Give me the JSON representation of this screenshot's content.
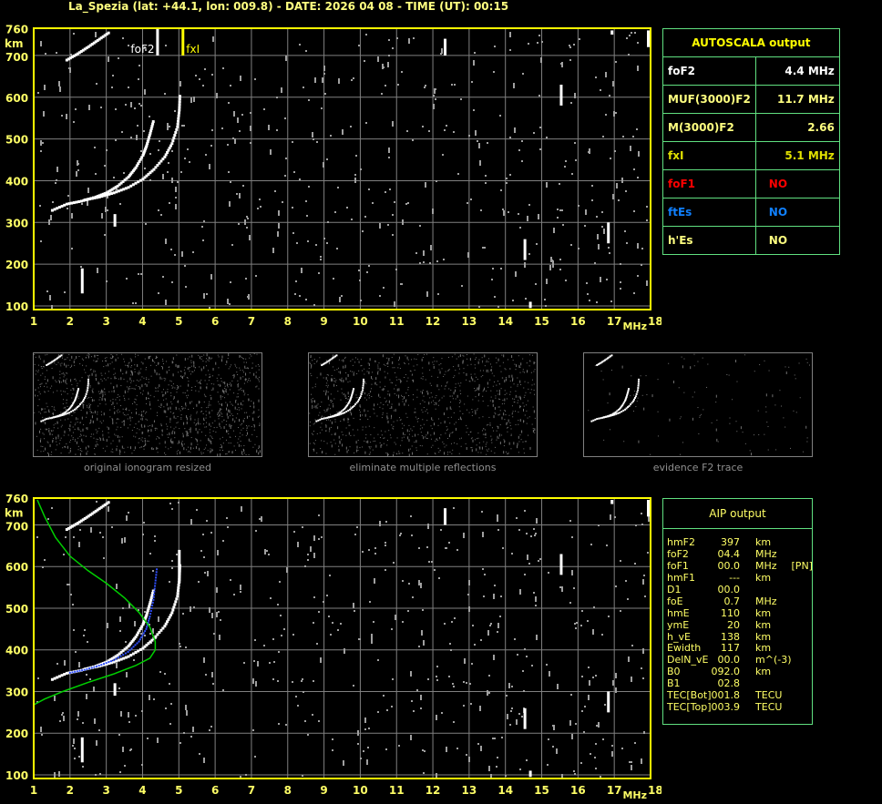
{
  "header": {
    "title": "La_Spezia (lat: +44.1, lon: 009.8) - DATE: 2026 04 08 - TIME (UT): 00:15"
  },
  "colors": {
    "axis": "#ffff00",
    "grid": "#808080",
    "trace": "#ffffff",
    "noise": "#a0a0a0",
    "profile": "#00d000",
    "aip_trace": "#3050ff",
    "panel_border": "#60e080"
  },
  "chart_data": [
    {
      "type": "scatter",
      "name": "ionogram-autoscala",
      "xlabel": "MHz",
      "ylabel": "km",
      "xlim": [
        1,
        18
      ],
      "ylim": [
        100,
        760
      ],
      "xticks": [
        "1",
        "2",
        "3",
        "4",
        "5",
        "6",
        "7",
        "8",
        "9",
        "10",
        "11",
        "12",
        "13",
        "14",
        "15",
        "16",
        "17",
        "18"
      ],
      "yticks": [
        "100",
        "200",
        "300",
        "400",
        "500",
        "600",
        "700",
        "760"
      ],
      "grid": true,
      "markers": [
        {
          "label": "foF2",
          "freq": 4.4,
          "color": "#ffffff"
        },
        {
          "label": "fxI",
          "freq": 5.1,
          "color": "#ffff00"
        }
      ],
      "traces": {
        "o_trace": [
          [
            1.5,
            330
          ],
          [
            1.9,
            345
          ],
          [
            2.3,
            352
          ],
          [
            2.7,
            362
          ],
          [
            3.0,
            372
          ],
          [
            3.3,
            388
          ],
          [
            3.6,
            410
          ],
          [
            3.8,
            432
          ],
          [
            4.0,
            462
          ],
          [
            4.1,
            485
          ],
          [
            4.2,
            515
          ],
          [
            4.3,
            548
          ]
        ],
        "x_trace": [
          [
            2.4,
            355
          ],
          [
            2.8,
            362
          ],
          [
            3.2,
            372
          ],
          [
            3.6,
            385
          ],
          [
            4.0,
            405
          ],
          [
            4.3,
            428
          ],
          [
            4.6,
            458
          ],
          [
            4.8,
            490
          ],
          [
            4.95,
            530
          ],
          [
            5.0,
            570
          ],
          [
            5.02,
            610
          ]
        ],
        "second_hop": [
          [
            1.9,
            690
          ],
          [
            2.2,
            705
          ],
          [
            2.5,
            722
          ],
          [
            2.8,
            740
          ],
          [
            3.1,
            758
          ]
        ]
      }
    },
    {
      "type": "scatter",
      "name": "ionogram-aip",
      "xlabel": "MHz",
      "ylabel": "km",
      "xlim": [
        1,
        18
      ],
      "ylim": [
        100,
        760
      ],
      "xticks": [
        "1",
        "2",
        "3",
        "4",
        "5",
        "6",
        "7",
        "8",
        "9",
        "10",
        "11",
        "12",
        "13",
        "14",
        "15",
        "16",
        "17",
        "18"
      ],
      "yticks": [
        "100",
        "200",
        "300",
        "400",
        "500",
        "600",
        "700",
        "760"
      ],
      "grid": true,
      "profile": [
        [
          1.1,
          760
        ],
        [
          1.3,
          720
        ],
        [
          1.6,
          670
        ],
        [
          2.0,
          625
        ],
        [
          2.5,
          590
        ],
        [
          3.0,
          560
        ],
        [
          3.5,
          525
        ],
        [
          3.9,
          490
        ],
        [
          4.2,
          455
        ],
        [
          4.35,
          420
        ],
        [
          4.35,
          400
        ],
        [
          4.2,
          380
        ],
        [
          3.8,
          362
        ],
        [
          3.2,
          342
        ],
        [
          2.5,
          322
        ],
        [
          1.8,
          300
        ],
        [
          1.3,
          282
        ],
        [
          1.0,
          268
        ]
      ],
      "aip_trace": [
        [
          2.0,
          345
        ],
        [
          2.4,
          352
        ],
        [
          2.8,
          362
        ],
        [
          3.2,
          375
        ],
        [
          3.6,
          395
        ],
        [
          3.9,
          420
        ],
        [
          4.1,
          450
        ],
        [
          4.2,
          480
        ],
        [
          4.3,
          520
        ],
        [
          4.35,
          560
        ],
        [
          4.4,
          600
        ]
      ]
    }
  ],
  "autoscala": {
    "title": "AUTOSCALA output",
    "rows": [
      {
        "name": "foF2",
        "value": "4.4 MHz",
        "color": "#ffffff"
      },
      {
        "name": "MUF(3000)F2",
        "value": "11.7 MHz",
        "color": "#ffff80"
      },
      {
        "name": "M(3000)F2",
        "value": "2.66",
        "color": "#ffff80"
      },
      {
        "name": "fxI",
        "value": "5.1 MHz",
        "color": "#e0e000"
      },
      {
        "name": "foF1",
        "value": "NO",
        "color": "#ff0000"
      },
      {
        "name": "ftEs",
        "value": "NO",
        "color": "#1080ff"
      },
      {
        "name": "h'Es",
        "value": "NO",
        "color": "#ffff80"
      }
    ]
  },
  "thumbnails": [
    {
      "caption": "original ionogram resized"
    },
    {
      "caption": "eliminate multiple reflections"
    },
    {
      "caption": "evidence F2 trace"
    }
  ],
  "aip": {
    "title": "AIP output",
    "rows": [
      {
        "name": "hmF2",
        "value": "397",
        "unit": "km",
        "extra": ""
      },
      {
        "name": "foF2",
        "value": "04.4",
        "unit": "MHz",
        "extra": ""
      },
      {
        "name": "foF1",
        "value": "00.0",
        "unit": "MHz",
        "extra": "[PN]"
      },
      {
        "name": "hmF1",
        "value": "---",
        "unit": "km",
        "extra": ""
      },
      {
        "name": "D1",
        "value": "00.0",
        "unit": "",
        "extra": ""
      },
      {
        "name": "foE",
        "value": "0.7",
        "unit": "MHz",
        "extra": ""
      },
      {
        "name": "hmE",
        "value": "110",
        "unit": "km",
        "extra": ""
      },
      {
        "name": "ymE",
        "value": "20",
        "unit": "km",
        "extra": ""
      },
      {
        "name": "h_vE",
        "value": "138",
        "unit": "km",
        "extra": ""
      },
      {
        "name": "Ewidth",
        "value": "117",
        "unit": "km",
        "extra": ""
      },
      {
        "name": "DelN_vE",
        "value": "00.0",
        "unit": "m^(-3)",
        "extra": ""
      },
      {
        "name": "B0",
        "value": "092.0",
        "unit": "km",
        "extra": ""
      },
      {
        "name": "B1",
        "value": "02.8",
        "unit": "",
        "extra": ""
      },
      {
        "name": "TEC[Bot]",
        "value": "001.8",
        "unit": "TECU",
        "extra": ""
      },
      {
        "name": "TEC[Top]",
        "value": "003.9",
        "unit": "TECU",
        "extra": ""
      }
    ]
  }
}
